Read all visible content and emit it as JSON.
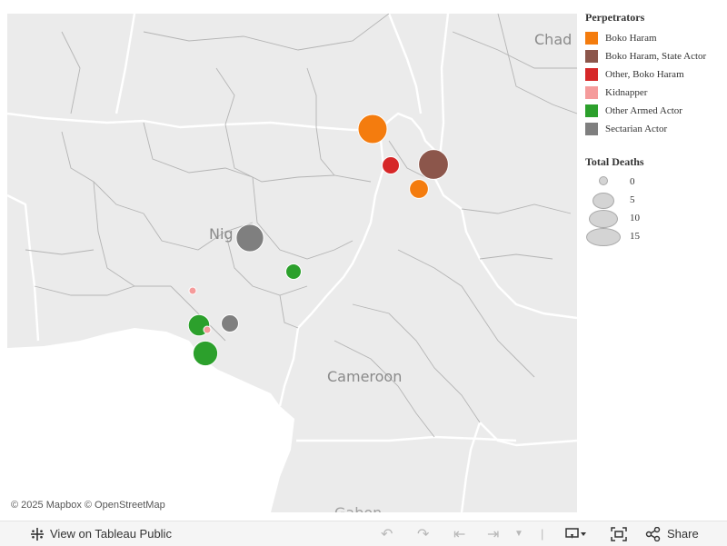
{
  "map": {
    "labels": {
      "chad": "Chad",
      "nigeria": "Nig",
      "cameroon": "Cameroon",
      "gabon": "Gabon"
    },
    "attribution": "© 2025 Mapbox  © OpenStreetMap",
    "colors": {
      "land": "#ebebeb",
      "water": "#ffffff",
      "border": "#ffffff"
    }
  },
  "legend": {
    "title": "Perpetrators",
    "items": [
      {
        "label": "Boko Haram",
        "color": "#f47c0e"
      },
      {
        "label": "Boko Haram, State Actor",
        "color": "#8c564b"
      },
      {
        "label": "Other, Boko Haram",
        "color": "#d62728"
      },
      {
        "label": "Kidnapper",
        "color": "#f59b9b"
      },
      {
        "label": "Other Armed Actor",
        "color": "#2ca02c"
      },
      {
        "label": "Sectarian Actor",
        "color": "#7f7f7f"
      }
    ]
  },
  "size_legend": {
    "title": "Total  Deaths",
    "values": [
      "0",
      "5",
      "10",
      "15"
    ]
  },
  "events": [
    {
      "perpetrator": "Boko Haram",
      "deaths": 14
    },
    {
      "perpetrator": "Boko Haram, State Actor",
      "deaths": 15
    },
    {
      "perpetrator": "Other, Boko Haram",
      "deaths": 3
    },
    {
      "perpetrator": "Boko Haram",
      "deaths": 4
    },
    {
      "perpetrator": "Sectarian Actor",
      "deaths": 12
    },
    {
      "perpetrator": "Other Armed Actor",
      "deaths": 2
    },
    {
      "perpetrator": "Kidnapper",
      "deaths": 0
    },
    {
      "perpetrator": "Other Armed Actor",
      "deaths": 6
    },
    {
      "perpetrator": "Kidnapper",
      "deaths": 0
    },
    {
      "perpetrator": "Sectarian Actor",
      "deaths": 3
    },
    {
      "perpetrator": "Other Armed Actor",
      "deaths": 9
    }
  ],
  "toolbar": {
    "view_label": "View on Tableau Public",
    "share_label": "Share"
  }
}
